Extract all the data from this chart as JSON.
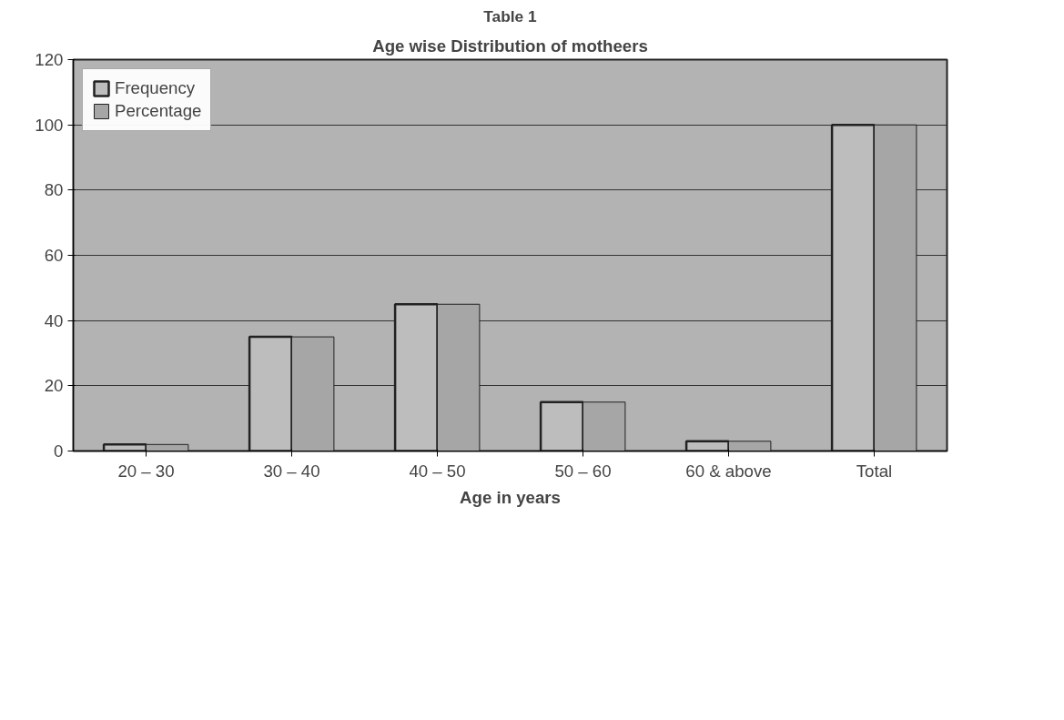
{
  "chart_data": {
    "type": "bar",
    "title": "Table 1",
    "subtitle": "Age wise Distribution of motheers",
    "xlabel": "Age in years",
    "categories": [
      "20 – 30",
      "30 – 40",
      "40 – 50",
      "50 – 60",
      "60 & above",
      "Total"
    ],
    "series": [
      {
        "name": "Frequency",
        "color": "#bdbdbd",
        "values": [
          2,
          35,
          45,
          15,
          3,
          100
        ]
      },
      {
        "name": "Percentage",
        "color": "#a6a6a6",
        "values": [
          2,
          35,
          45,
          15,
          3,
          100
        ]
      }
    ],
    "ylim": [
      0,
      120
    ],
    "yticks": [
      0,
      20,
      40,
      60,
      80,
      100,
      120
    ],
    "grid": "y",
    "legend": "top left"
  }
}
